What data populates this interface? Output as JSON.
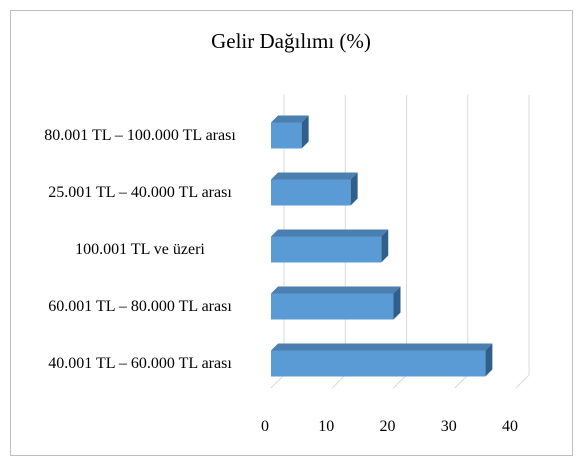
{
  "chart_data": {
    "type": "bar",
    "orientation": "horizontal",
    "title": "Gelir Dağılımı  (%)",
    "categories": [
      "80.001 TL – 100.000 TL arası",
      "25.001 TL – 40.000 TL arası",
      "100.001 TL ve üzeri",
      "60.001 TL – 80.000 TL arası",
      "40.001 TL – 60.000 TL arası"
    ],
    "values": [
      5,
      13,
      18,
      20,
      35
    ],
    "color": "#5b9bd5",
    "xlim": [
      0,
      40
    ],
    "xticks": [
      0,
      10,
      20,
      30,
      40
    ],
    "grid": true
  }
}
